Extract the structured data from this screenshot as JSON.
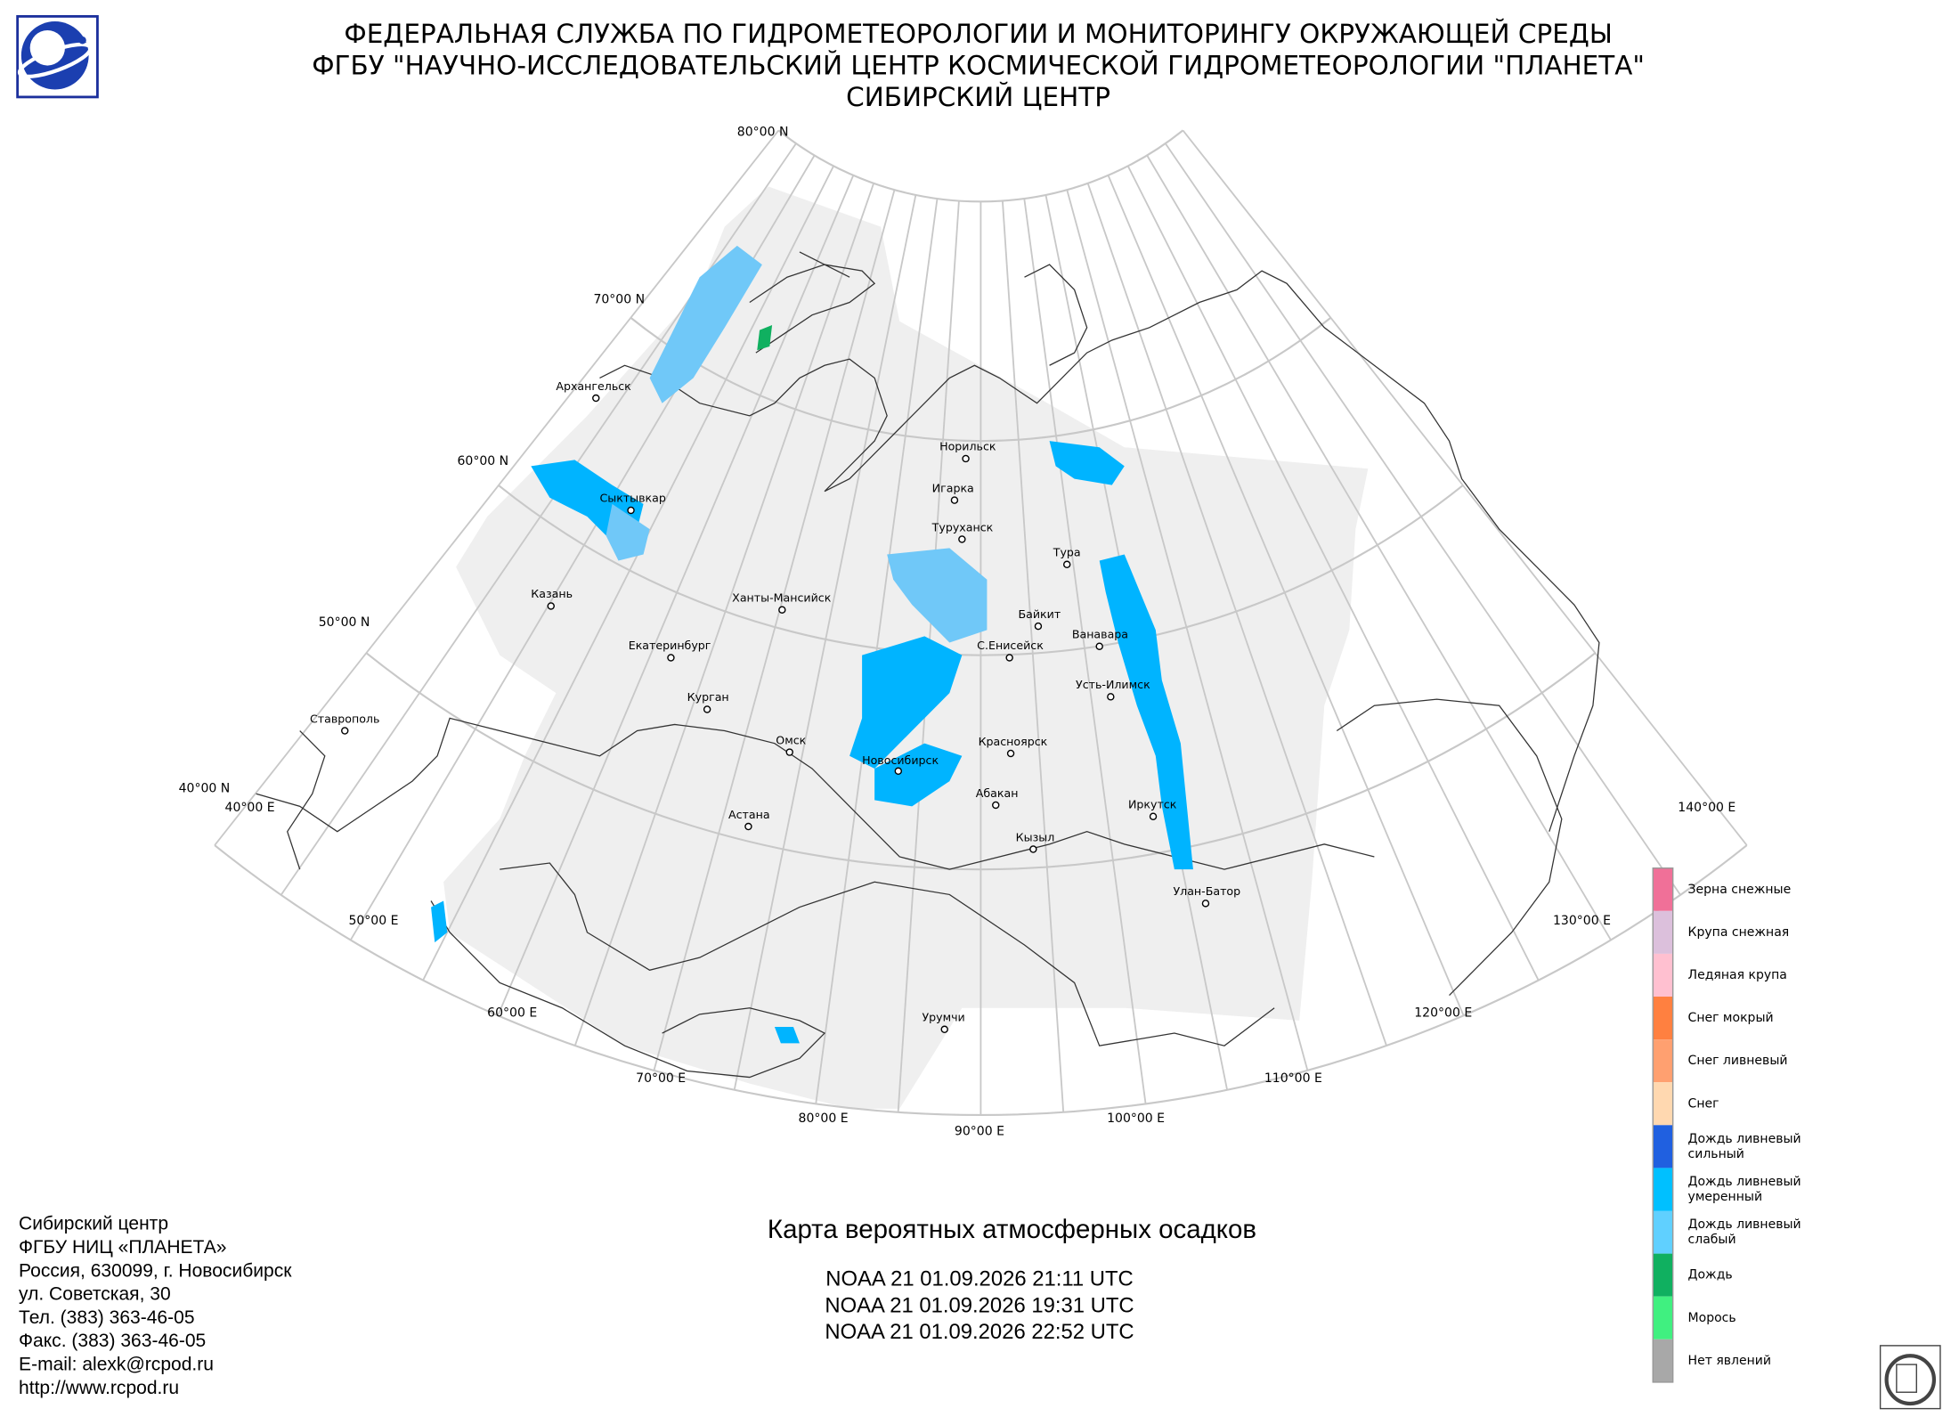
{
  "header": {
    "lines": [
      "ФЕДЕРАЛЬНАЯ СЛУЖБА ПО ГИДРОМЕТЕОРОЛОГИИ И МОНИТОРИНГУ ОКРУЖАЮЩЕЙ СРЕДЫ",
      "ФГБУ \"НАУЧНО-ИССЛЕДОВАТЕЛЬСКИЙ ЦЕНТР КОСМИЧЕСКОЙ ГИДРОМЕТЕОРОЛОГИИ \"ПЛАНЕТА\"",
      "СИБИРСКИЙ ЦЕНТР"
    ]
  },
  "map": {
    "lat_labels": [
      "80°00 N",
      "70°00 N",
      "60°00 N",
      "50°00 N",
      "40°00 N"
    ],
    "lon_labels": [
      "40°00 E",
      "50°00 E",
      "60°00 E",
      "70°00 E",
      "80°00 E",
      "90°00 E",
      "100°00 E",
      "110°00 E",
      "120°00 E",
      "130°00 E",
      "140°00 E"
    ],
    "cities": [
      "Архангельск",
      "Сыктывкар",
      "Казань",
      "Екатеринбург",
      "Курган",
      "Ханты-Мансийск",
      "Омск",
      "Астана",
      "Новосибирск",
      "Норильск",
      "Игарка",
      "Туруханск",
      "Тура",
      "Байкит",
      "С.Енисейск",
      "Ванавара",
      "Усть-Илимск",
      "Красноярск",
      "Абакан",
      "Кызыл",
      "Иркутск",
      "Улан-Батор",
      "Урумчи",
      "Ставрополь"
    ]
  },
  "legend": {
    "items": [
      {
        "label": [
          "Зерна снежные"
        ],
        "color": "#f07098"
      },
      {
        "label": [
          "Крупа снежная"
        ],
        "color": "#dcc0dc"
      },
      {
        "label": [
          "Ледяная крупа"
        ],
        "color": "#ffc0d0"
      },
      {
        "label": [
          "Снег мокрый"
        ],
        "color": "#ff8040"
      },
      {
        "label": [
          "Снег ливневый"
        ],
        "color": "#ffa070"
      },
      {
        "label": [
          "Снег"
        ],
        "color": "#ffd8b0"
      },
      {
        "label": [
          "Дождь ливневый",
          "сильный"
        ],
        "color": "#2060e0"
      },
      {
        "label": [
          "Дождь ливневый",
          "умеренный"
        ],
        "color": "#00c0ff"
      },
      {
        "label": [
          "Дождь ливневый",
          "слабый"
        ],
        "color": "#60d0ff"
      },
      {
        "label": [
          "Дождь"
        ],
        "color": "#10b060"
      },
      {
        "label": [
          "Морось"
        ],
        "color": "#40f080"
      },
      {
        "label": [
          "Нет явлений"
        ],
        "color": "#a8a8a8"
      }
    ]
  },
  "footer": {
    "contact": [
      "Сибирский центр",
      "ФГБУ НИЦ «ПЛАНЕТА»",
      "Россия, 630099, г. Новосибирск",
      "ул. Советская, 30",
      "Тел. (383) 363-46-05",
      "Факс. (383) 363-46-05",
      "E-mail: alexk@rcpod.ru",
      "http://www.rcpod.ru"
    ],
    "title": "Карта вероятных атмосферных осадков",
    "passes": [
      "NOAA 21 01.09.2026  21:11 UTC",
      "NOAA 21 01.09.2026  19:31 UTC",
      "NOAA 21 01.09.2026  22:52 UTC"
    ]
  }
}
